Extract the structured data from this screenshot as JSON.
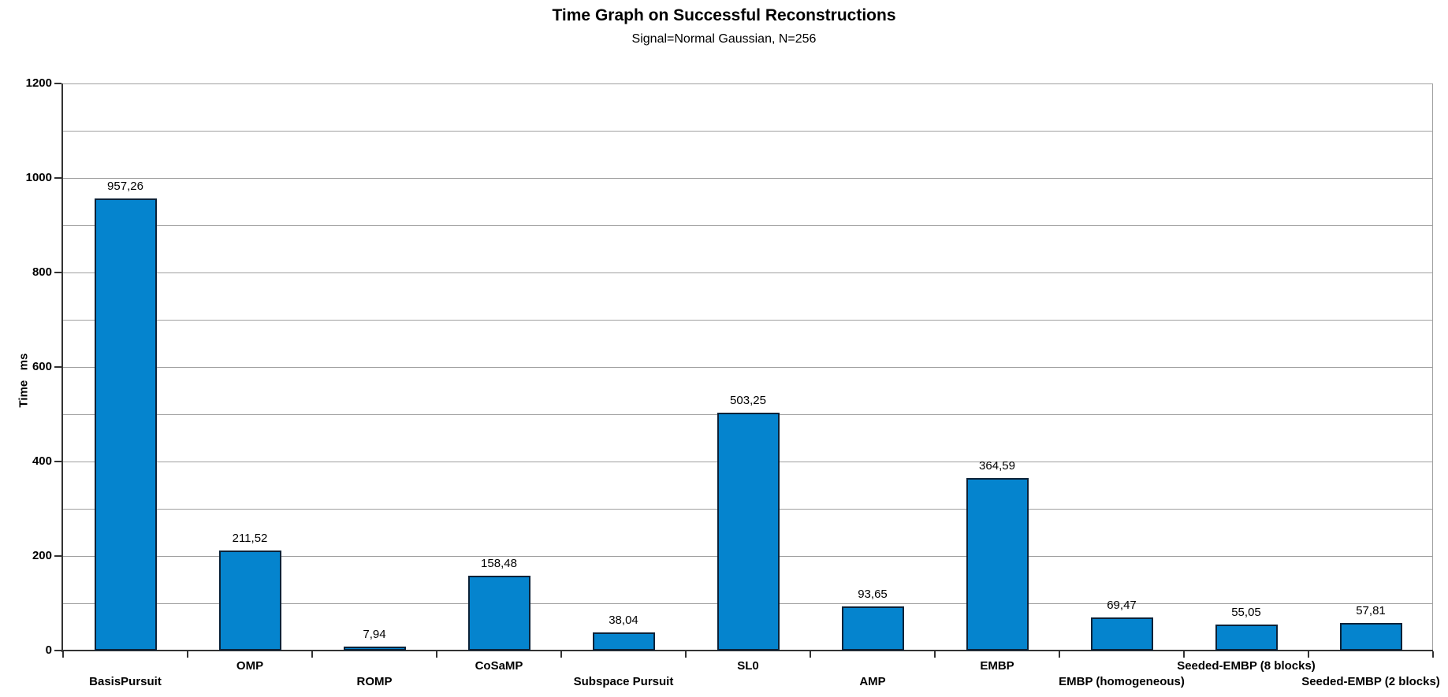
{
  "chart_data": {
    "type": "bar",
    "title": "Time Graph on Successful Reconstructions",
    "subtitle": "Signal=Normal Gaussian, N=256",
    "ylabel": "Time   ms",
    "categories": [
      "BasisPursuit",
      "OMP",
      "ROMP",
      "CoSaMP",
      "Subspace Pursuit",
      "SL0",
      "AMP",
      "EMBP",
      "EMBP (homogeneous)",
      "Seeded-EMBP (8 blocks)",
      "Seeded-EMBP (2 blocks)"
    ],
    "values": [
      957.26,
      211.52,
      7.94,
      158.48,
      38.04,
      503.25,
      93.65,
      364.59,
      69.47,
      55.05,
      57.81
    ],
    "value_labels": [
      "957,26",
      "211,52",
      "7,94",
      "158,48",
      "38,04",
      "503,25",
      "93,65",
      "364,59",
      "69,47",
      "55,05",
      "57,81"
    ],
    "ylim": [
      0,
      1200
    ],
    "y_major_step": 200,
    "y_grid_step": 100,
    "grid": true,
    "legend": "none",
    "colors": {
      "bar_fill": "#0584ce",
      "bar_border": "#0c2238",
      "grid_line": "#a0a0a0",
      "axis_line": "#333333",
      "text": "#000000",
      "background": "#ffffff"
    }
  }
}
